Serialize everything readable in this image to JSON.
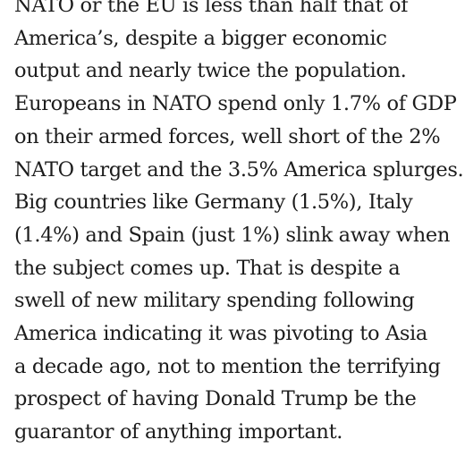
{
  "article": {
    "lines": [
      "NATO or the EU is less than half that of",
      "America’s, despite a bigger economic",
      "output and nearly twice the population.",
      "Europeans in NATO spend only 1.7% of GDP",
      "on their armed forces, well short of the 2%",
      "NATO target and the 3.5% America splurges.",
      "Big countries like Germany (1.5%), Italy",
      "(1.4%) and Spain (just 1%) slink away when",
      "the subject comes up. That is despite a",
      "swell of new military spending following",
      "America indicating it was pivoting to Asia",
      "a decade ago, not to mention the terrifying",
      "prospect of having Donald Trump be the",
      "guarantor of anything important."
    ]
  }
}
